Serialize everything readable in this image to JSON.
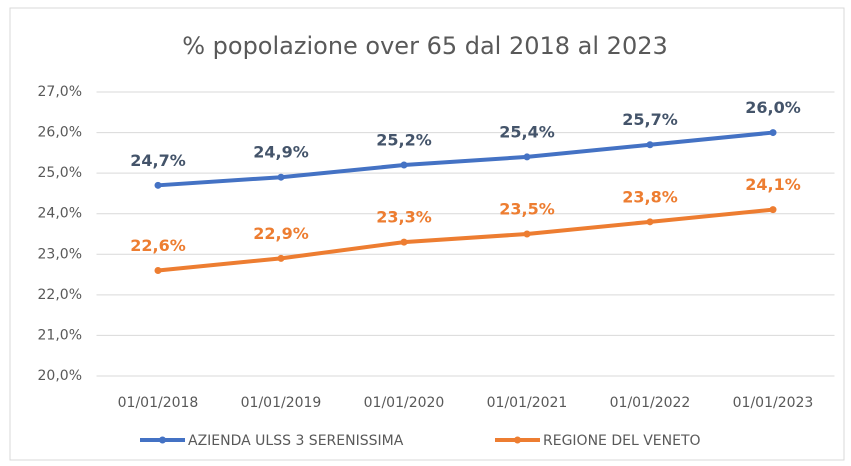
{
  "chart_data": {
    "type": "line",
    "title": "% popolazione over 65 dal 2018 al 2023",
    "categories": [
      "01/01/2018",
      "01/01/2019",
      "01/01/2020",
      "01/01/2021",
      "01/01/2022",
      "01/01/2023"
    ],
    "series": [
      {
        "name": "AZIENDA ULSS 3 SERENISSIMA",
        "color": "#4472c4",
        "label_color": "#44546a",
        "values": [
          24.7,
          24.9,
          25.2,
          25.4,
          25.7,
          26.0
        ],
        "value_labels": [
          "24,7%",
          "24,9%",
          "25,2%",
          "25,4%",
          "25,7%",
          "26,0%"
        ]
      },
      {
        "name": "REGIONE DEL VENETO",
        "color": "#ed7d31",
        "label_color": "#ed7d31",
        "values": [
          22.6,
          22.9,
          23.3,
          23.5,
          23.8,
          24.1
        ],
        "value_labels": [
          "22,6%",
          "22,9%",
          "23,3%",
          "23,5%",
          "23,8%",
          "24,1%"
        ]
      }
    ],
    "ylim": [
      20,
      27
    ],
    "yticks": [
      {
        "value": 20,
        "label": "20,0%"
      },
      {
        "value": 21,
        "label": "21,0%"
      },
      {
        "value": 22,
        "label": "22,0%"
      },
      {
        "value": 23,
        "label": "23,0%"
      },
      {
        "value": 24,
        "label": "24,0%"
      },
      {
        "value": 25,
        "label": "25,0%"
      },
      {
        "value": 26,
        "label": "26,0%"
      },
      {
        "value": 27,
        "label": "27,0%"
      }
    ],
    "grid": true,
    "legend": "bottom"
  }
}
